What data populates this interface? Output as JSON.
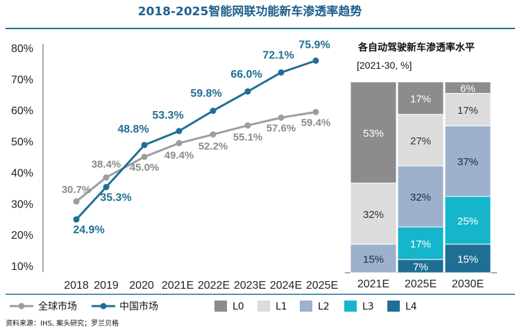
{
  "title": "2018-2025智能网联功能新车渗透率趋势",
  "source": "资料来源：IHS, 案头研究；罗兰贝格",
  "chart_data": [
    {
      "type": "line",
      "x": [
        "2018",
        "2019",
        "2020",
        "2021E",
        "2022E",
        "2023E",
        "2024E",
        "2025E"
      ],
      "ylim": [
        10,
        80
      ],
      "yticks": [
        "10%",
        "20%",
        "30%",
        "40%",
        "50%",
        "60%",
        "70%",
        "80%"
      ],
      "series": [
        {
          "name": "全球市场",
          "color": "#9d9d9d",
          "values": [
            30.7,
            38.4,
            45.0,
            49.4,
            52.2,
            55.1,
            57.6,
            59.4
          ],
          "labels": [
            "30.7%",
            "38.4%",
            "45.0%",
            "49.4%",
            "52.2%",
            "55.1%",
            "57.6%",
            "59.4%"
          ]
        },
        {
          "name": "中国市场",
          "color": "#1f6f94",
          "values": [
            24.9,
            35.3,
            48.8,
            53.3,
            59.8,
            66.0,
            72.1,
            75.9
          ],
          "labels": [
            "24.9%",
            "35.3%",
            "48.8%",
            "53.3%",
            "59.8%",
            "66.0%",
            "72.1%",
            "75.9%"
          ]
        }
      ]
    },
    {
      "type": "bar",
      "stacked": true,
      "title": "各自动驾驶新车渗透率水平",
      "subtitle": "[2021-30, %]",
      "categories": [
        "2021E",
        "2025E",
        "2030E"
      ],
      "series": [
        {
          "name": "L0",
          "color": "#8c8c8c",
          "text_color": "#ffffff",
          "values": [
            53,
            17,
            6
          ],
          "labels": [
            "53%",
            "17%",
            "6%"
          ]
        },
        {
          "name": "L1",
          "color": "#dcdcdc",
          "text_color": "#333333",
          "values": [
            32,
            27,
            17
          ],
          "labels": [
            "32%",
            "27%",
            "17%"
          ]
        },
        {
          "name": "L2",
          "color": "#9db0cc",
          "text_color": "#1c2a40",
          "values": [
            15,
            32,
            37
          ],
          "labels": [
            "15%",
            "32%",
            "37%"
          ]
        },
        {
          "name": "L3",
          "color": "#15b5cc",
          "text_color": "#ffffff",
          "values": [
            0,
            17,
            25
          ],
          "labels": [
            "",
            "17%",
            "25%"
          ]
        },
        {
          "name": "L4",
          "color": "#1f6f94",
          "text_color": "#ffffff",
          "values": [
            0,
            7,
            15
          ],
          "labels": [
            "",
            "7%",
            "15%"
          ]
        }
      ]
    }
  ]
}
